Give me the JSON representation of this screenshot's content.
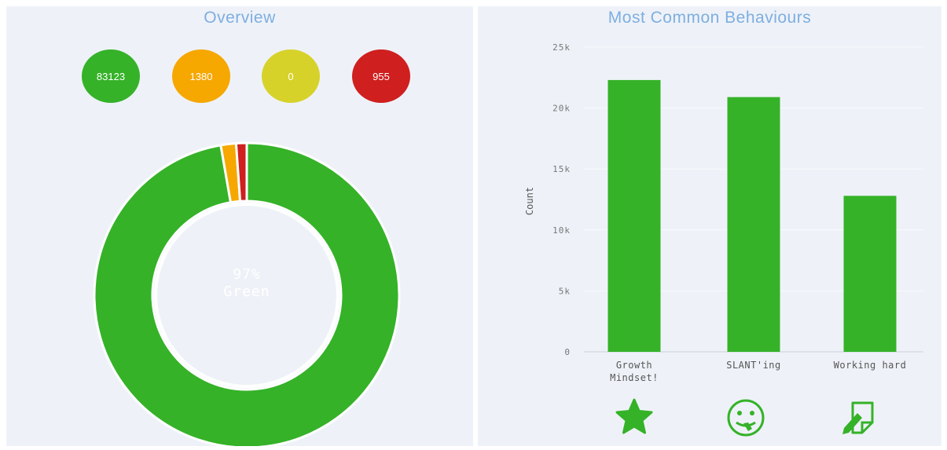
{
  "overview": {
    "title": "Overview",
    "counts": [
      {
        "value": "83123",
        "color": "#35b228"
      },
      {
        "value": "1380",
        "color": "#f6a700"
      },
      {
        "value": "0",
        "color": "#d7d22a"
      },
      {
        "value": "955",
        "color": "#cf1f1f"
      }
    ],
    "donut": {
      "center_percent": "97%",
      "center_label": "Green",
      "segments": [
        {
          "name": "green",
          "value": 83123,
          "color": "#35b228"
        },
        {
          "name": "amber",
          "value": 1380,
          "color": "#f6a700"
        },
        {
          "name": "yellow",
          "value": 0,
          "color": "#d7d22a"
        },
        {
          "name": "red",
          "value": 955,
          "color": "#cf1f1f"
        }
      ]
    }
  },
  "behaviours": {
    "title": "Most Common Behaviours",
    "icons": [
      "star-icon",
      "slant-face-icon",
      "pencil-paper-icon"
    ]
  },
  "chart_data": {
    "type": "bar",
    "title": "Most Common Behaviours",
    "categories": [
      "Growth Mindset!",
      "SLANT'ing",
      "Working hard"
    ],
    "category_lines": [
      [
        "Growth",
        "Mindset!"
      ],
      [
        "SLANT'ing"
      ],
      [
        "Working hard"
      ]
    ],
    "values": [
      22300,
      20900,
      12800
    ],
    "ylabel": "Count",
    "xlabel": "",
    "ylim": [
      0,
      25000
    ],
    "yticks": [
      0,
      5000,
      10000,
      15000,
      20000,
      25000
    ],
    "ytick_labels": [
      "0",
      "5k",
      "10k",
      "15k",
      "20k",
      "25k"
    ],
    "bar_color": "#35b228",
    "grid": true
  }
}
